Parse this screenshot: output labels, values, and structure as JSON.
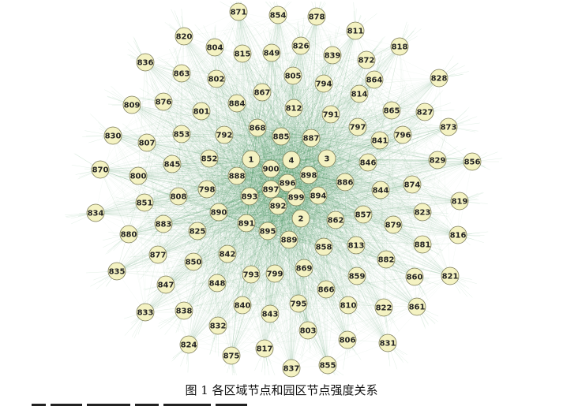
{
  "caption": "图 1  各区域节点和园区节点强度关系",
  "colors": {
    "edge": "#2e8b4a",
    "node_fill": "#f4f2c2",
    "node_stroke": "#7a7a56",
    "text": "#222222"
  },
  "nodes": [
    {
      "label": "871"
    },
    {
      "label": "854"
    },
    {
      "label": "878"
    },
    {
      "label": "811"
    },
    {
      "label": "820"
    },
    {
      "label": "804"
    },
    {
      "label": "815"
    },
    {
      "label": "849"
    },
    {
      "label": "826"
    },
    {
      "label": "839"
    },
    {
      "label": "872"
    },
    {
      "label": "818"
    },
    {
      "label": "836"
    },
    {
      "label": "863"
    },
    {
      "label": "805"
    },
    {
      "label": "802"
    },
    {
      "label": "794"
    },
    {
      "label": "864"
    },
    {
      "label": "828"
    },
    {
      "label": "814"
    },
    {
      "label": "867"
    },
    {
      "label": "884"
    },
    {
      "label": "876"
    },
    {
      "label": "809"
    },
    {
      "label": "801"
    },
    {
      "label": "812"
    },
    {
      "label": "791"
    },
    {
      "label": "865"
    },
    {
      "label": "827"
    },
    {
      "label": "873"
    },
    {
      "label": "868"
    },
    {
      "label": "797"
    },
    {
      "label": "853"
    },
    {
      "label": "792"
    },
    {
      "label": "885"
    },
    {
      "label": "887"
    },
    {
      "label": "841"
    },
    {
      "label": "830"
    },
    {
      "label": "807"
    },
    {
      "label": "796"
    },
    {
      "label": "829"
    },
    {
      "label": "856"
    },
    {
      "label": "852"
    },
    {
      "label": "1"
    },
    {
      "label": "4"
    },
    {
      "label": "3"
    },
    {
      "label": "846"
    },
    {
      "label": "845"
    },
    {
      "label": "900"
    },
    {
      "label": "870"
    },
    {
      "label": "800"
    },
    {
      "label": "888"
    },
    {
      "label": "896"
    },
    {
      "label": "898"
    },
    {
      "label": "886"
    },
    {
      "label": "874"
    },
    {
      "label": "798"
    },
    {
      "label": "897"
    },
    {
      "label": "844"
    },
    {
      "label": "808"
    },
    {
      "label": "893"
    },
    {
      "label": "899"
    },
    {
      "label": "894"
    },
    {
      "label": "819"
    },
    {
      "label": "851"
    },
    {
      "label": "892"
    },
    {
      "label": "890"
    },
    {
      "label": "857"
    },
    {
      "label": "834"
    },
    {
      "label": "823"
    },
    {
      "label": "2"
    },
    {
      "label": "862"
    },
    {
      "label": "883"
    },
    {
      "label": "891"
    },
    {
      "label": "879"
    },
    {
      "label": "825"
    },
    {
      "label": "895"
    },
    {
      "label": "880"
    },
    {
      "label": "816"
    },
    {
      "label": "889"
    },
    {
      "label": "813"
    },
    {
      "label": "858"
    },
    {
      "label": "881"
    },
    {
      "label": "842"
    },
    {
      "label": "877"
    },
    {
      "label": "882"
    },
    {
      "label": "850"
    },
    {
      "label": "869"
    },
    {
      "label": "835"
    },
    {
      "label": "793"
    },
    {
      "label": "799"
    },
    {
      "label": "859"
    },
    {
      "label": "860"
    },
    {
      "label": "821"
    },
    {
      "label": "848"
    },
    {
      "label": "847"
    },
    {
      "label": "866"
    },
    {
      "label": "840"
    },
    {
      "label": "795"
    },
    {
      "label": "810"
    },
    {
      "label": "822"
    },
    {
      "label": "861"
    },
    {
      "label": "833"
    },
    {
      "label": "838"
    },
    {
      "label": "843"
    },
    {
      "label": "832"
    },
    {
      "label": "803"
    },
    {
      "label": "806"
    },
    {
      "label": "831"
    },
    {
      "label": "824"
    },
    {
      "label": "817"
    },
    {
      "label": "875"
    },
    {
      "label": "837"
    },
    {
      "label": "855"
    }
  ]
}
